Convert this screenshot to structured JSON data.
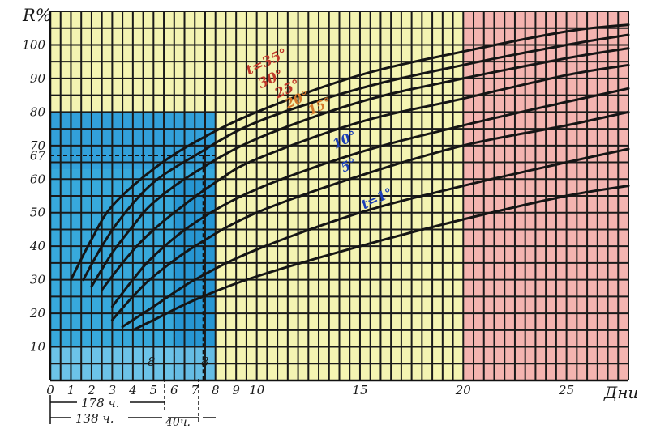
{
  "chart_data": {
    "type": "line",
    "title": "",
    "ylabel": "R%",
    "xlabel": "Дни",
    "xlim": [
      0,
      28
    ],
    "ylim": [
      0,
      110
    ],
    "x_ticks": [
      "0",
      "1",
      "2",
      "3",
      "4",
      "5",
      "6",
      "7",
      "8",
      "9",
      "10",
      "15",
      "20",
      "25"
    ],
    "y_ticks": [
      "10",
      "20",
      "30",
      "40",
      "50",
      "60",
      "67",
      "70",
      "80",
      "90",
      "100"
    ],
    "series": [
      {
        "name": "t=35°",
        "color": "#c0392b",
        "x": [
          1,
          2,
          3,
          5,
          7,
          10,
          15,
          20,
          25,
          28
        ],
        "y": [
          30,
          42,
          52,
          63,
          71,
          80,
          91,
          98,
          104,
          106
        ]
      },
      {
        "name": "30°",
        "color": "#c0392b",
        "x": [
          1.6,
          2.5,
          3.5,
          5,
          7,
          10,
          15,
          20,
          25,
          28
        ],
        "y": [
          30,
          40,
          49,
          59,
          67,
          77,
          87,
          94,
          100,
          103
        ]
      },
      {
        "name": "25°",
        "color": "#c0392b",
        "x": [
          2,
          3,
          4,
          5,
          7,
          10,
          15,
          20,
          25,
          28
        ],
        "y": [
          28,
          38,
          46,
          53,
          62,
          72,
          83,
          90,
          96,
          99
        ]
      },
      {
        "name": "20°",
        "color": "#d4782a",
        "x": [
          2.5,
          3.5,
          4.5,
          6,
          8,
          10,
          15,
          20,
          25,
          28
        ],
        "y": [
          27,
          35,
          42,
          50,
          59,
          66,
          77,
          84,
          91,
          94
        ]
      },
      {
        "name": "15°",
        "color": "#d4782a",
        "x": [
          3,
          4,
          5,
          7,
          10,
          15,
          20,
          25,
          28
        ],
        "y": [
          22,
          30,
          37,
          47,
          57,
          68,
          76,
          83,
          87
        ]
      },
      {
        "name": "10°",
        "color": "#1c3fb8",
        "x": [
          3,
          4,
          5,
          7,
          10,
          15,
          20,
          25,
          28
        ],
        "y": [
          18,
          25,
          31,
          40,
          50,
          61,
          70,
          76,
          80
        ]
      },
      {
        "name": "5°",
        "color": "#1c3fb8",
        "x": [
          3.5,
          5,
          7,
          10,
          15,
          20,
          25,
          28
        ],
        "y": [
          16,
          22,
          30,
          39,
          50,
          58,
          65,
          69
        ]
      },
      {
        "name": "t=1°",
        "color": "#1c3fb8",
        "x": [
          4,
          5,
          7,
          10,
          15,
          20,
          25,
          28
        ],
        "y": [
          15,
          18,
          24,
          31,
          40,
          48,
          55,
          58
        ]
      }
    ],
    "grid": true,
    "regions": [
      {
        "label": "days 0-8, up to 80%",
        "color": "#37a9dc"
      },
      {
        "label": "days 20-28",
        "color": "#f4b4b0"
      }
    ],
    "annotations": {
      "b_mark_1": "8",
      "b_mark_2": "8",
      "span_178": "178 ч.",
      "span_138": "138 ч.",
      "span_40": "40ч."
    }
  }
}
